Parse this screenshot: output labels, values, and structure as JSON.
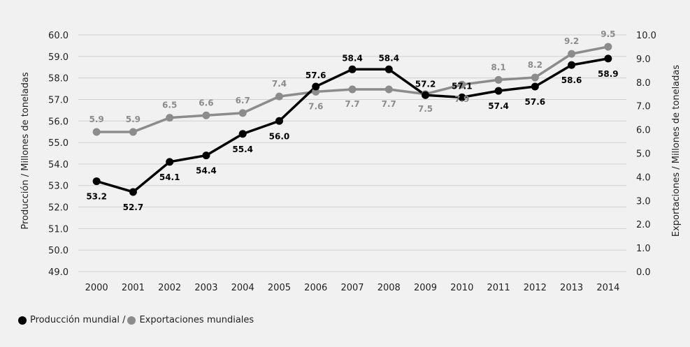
{
  "chart_data": {
    "type": "line",
    "categories": [
      "2000",
      "2001",
      "2002",
      "2003",
      "2004",
      "2005",
      "2006",
      "2007",
      "2008",
      "2009",
      "2010",
      "2011",
      "2012",
      "2013",
      "2014"
    ],
    "series": [
      {
        "name": "Producción mundial",
        "axis": "left",
        "color": "#000000",
        "values": [
          53.2,
          52.7,
          54.1,
          54.4,
          55.4,
          56.0,
          57.6,
          58.4,
          58.4,
          57.2,
          57.1,
          57.4,
          57.6,
          58.6,
          58.9
        ]
      },
      {
        "name": "Exportaciones mundiales",
        "axis": "right",
        "color": "#8c8c8c",
        "values": [
          5.9,
          5.9,
          6.5,
          6.6,
          6.7,
          7.4,
          7.6,
          7.7,
          7.7,
          7.5,
          7.9,
          8.1,
          8.2,
          9.2,
          9.5
        ]
      }
    ],
    "ylabel_left": "Producción / Millones de toneladas",
    "ylabel_right": "Exportaciones / Millones de toneladas",
    "ylim_left": [
      49.0,
      60.0
    ],
    "ylim_right": [
      0.0,
      10.0
    ],
    "yticks_left": [
      "49.0",
      "50.0",
      "51.0",
      "52.0",
      "53.0",
      "54.0",
      "55.0",
      "56.0",
      "57.0",
      "58.0",
      "59.0",
      "60.0"
    ],
    "yticks_right": [
      "0.0",
      "1.0",
      "2.0",
      "3.0",
      "4.0",
      "5.0",
      "6.0",
      "7.0",
      "8.0",
      "9.0",
      "10.0"
    ],
    "grid": true,
    "legend_position": "bottom-left"
  },
  "legend": {
    "production_label": "Producción mundial /",
    "exports_label": "Exportaciones mundiales"
  },
  "colors": {
    "production": "#000000",
    "exports": "#8c8c8c",
    "grid": "#d0d0d0",
    "background": "#f1f1f1"
  }
}
